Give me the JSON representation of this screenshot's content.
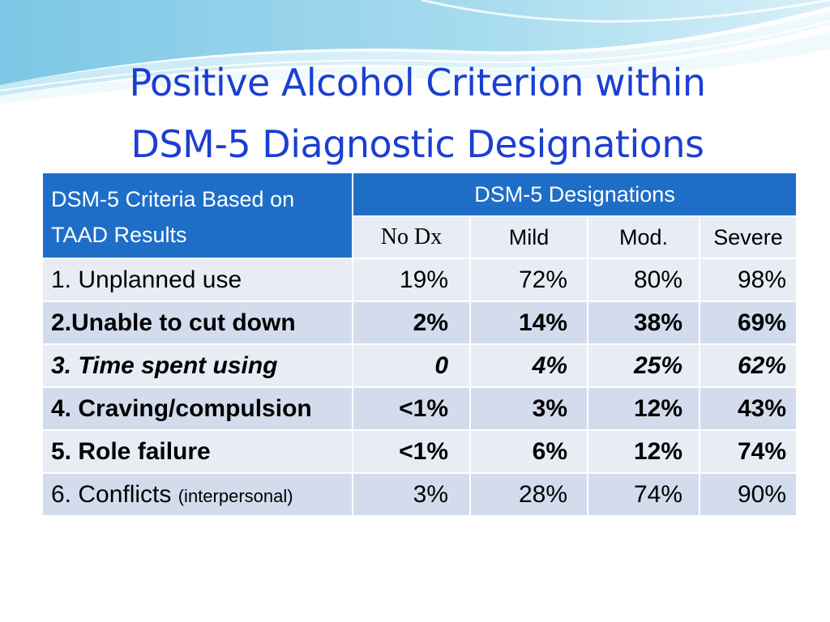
{
  "title": {
    "line1": "Positive Alcohol Criterion within",
    "line2": "DSM-5 Diagnostic Designations"
  },
  "table": {
    "criteria_header": "DSM-5 Criteria Based on TAAD Results",
    "designations_header": "DSM-5 Designations",
    "columns": [
      "No Dx",
      "Mild",
      "Mod.",
      "Severe"
    ],
    "rows": [
      {
        "label": "1. Unplanned use",
        "note": "",
        "values": [
          "19%",
          "72%",
          "80%",
          "98%"
        ],
        "style": "normal"
      },
      {
        "label": "2.Unable to cut down",
        "note": "",
        "values": [
          "2%",
          "14%",
          "38%",
          "69%"
        ],
        "style": "bold"
      },
      {
        "label": "3. Time spent using",
        "note": "",
        "values": [
          "0",
          "4%",
          "25%",
          "62%"
        ],
        "style": "bold-italic"
      },
      {
        "label": "4. Craving/compulsion",
        "note": "",
        "values": [
          "<1%",
          "3%",
          "12%",
          "43%"
        ],
        "style": "bold"
      },
      {
        "label": "5. Role failure",
        "note": "",
        "values": [
          "<1%",
          "6%",
          "12%",
          "74%"
        ],
        "style": "bold"
      },
      {
        "label": "6. Conflicts ",
        "note": "(interpersonal)",
        "values": [
          "3%",
          "28%",
          "74%",
          "90%"
        ],
        "style": "normal"
      }
    ]
  },
  "colors": {
    "title": "#1b3fd1",
    "header_bg": "#1e6ec8",
    "row_light": "#e8ecf4",
    "row_dark": "#d3dced"
  }
}
